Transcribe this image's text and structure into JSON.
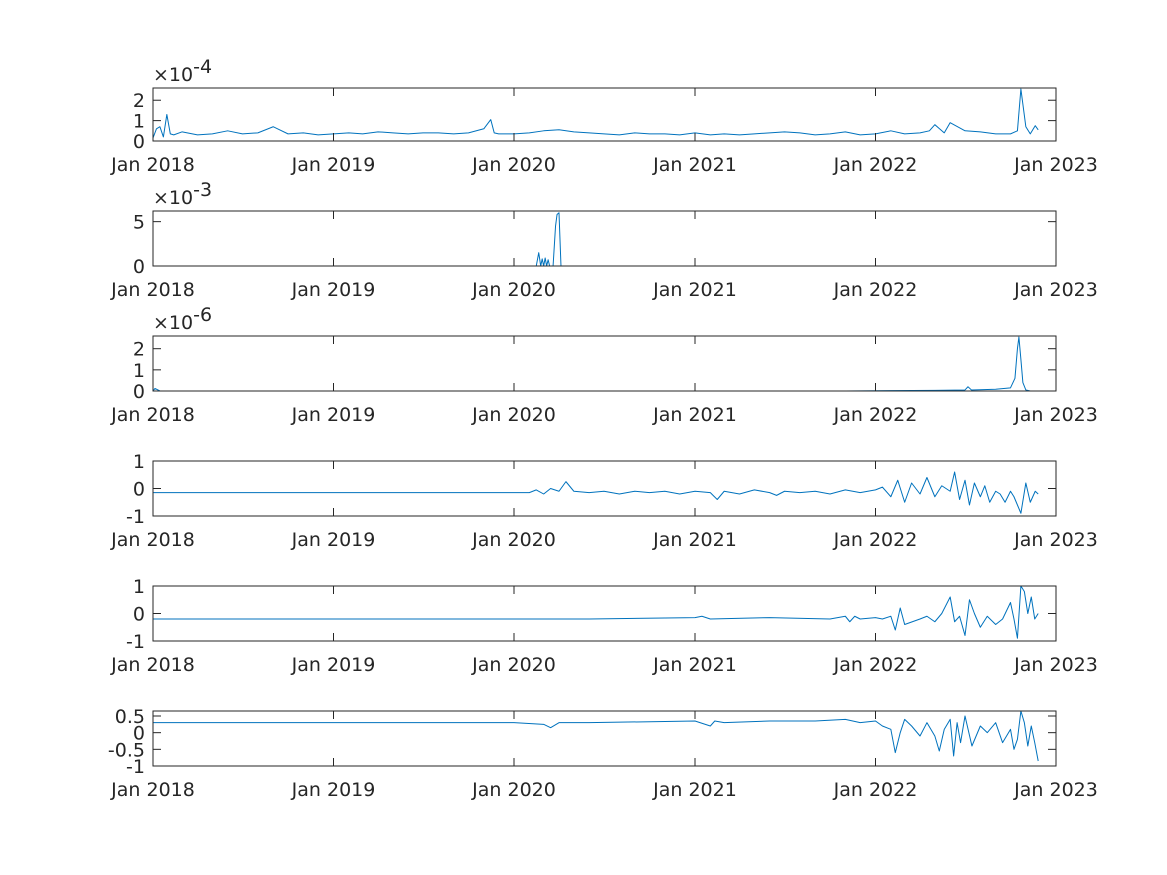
{
  "figure": {
    "background": "#ffffff",
    "line_color": "#0072bd",
    "axis_color": "#262626"
  },
  "chart_data": [
    {
      "type": "line",
      "title": "",
      "xlabel": "",
      "ylabel": "",
      "exponent": "-4",
      "xlim": [
        "2018-01-01",
        "2023-01-01"
      ],
      "x_ticks": [
        "2018-01-01",
        "2019-01-01",
        "2020-01-01",
        "2021-01-01",
        "2022-01-01",
        "2023-01-01"
      ],
      "x_tick_labels": [
        "Jan 2018",
        "Jan 2019",
        "Jan 2020",
        "Jan 2021",
        "Jan 2022",
        "Jan 2023"
      ],
      "ylim": [
        0,
        2.6
      ],
      "y_ticks": [
        0,
        1,
        2
      ],
      "y_tick_labels": [
        "0",
        "1",
        "2"
      ],
      "series": [
        {
          "x": [
            "2018-01-01",
            "2018-01-08",
            "2018-01-15",
            "2018-01-22",
            "2018-01-29",
            "2018-02-05",
            "2018-02-12",
            "2018-03-01",
            "2018-04-01",
            "2018-05-01",
            "2018-06-01",
            "2018-07-01",
            "2018-08-01",
            "2018-09-01",
            "2018-10-01",
            "2018-11-01",
            "2018-12-01",
            "2019-01-01",
            "2019-02-01",
            "2019-03-01",
            "2019-04-01",
            "2019-05-01",
            "2019-06-01",
            "2019-07-01",
            "2019-08-01",
            "2019-09-01",
            "2019-10-01",
            "2019-11-01",
            "2019-11-15",
            "2019-11-22",
            "2019-12-01",
            "2020-01-01",
            "2020-02-01",
            "2020-03-01",
            "2020-04-01",
            "2020-05-01",
            "2020-06-01",
            "2020-07-01",
            "2020-08-01",
            "2020-09-01",
            "2020-10-01",
            "2020-11-01",
            "2020-12-01",
            "2021-01-01",
            "2021-02-01",
            "2021-03-01",
            "2021-04-01",
            "2021-05-01",
            "2021-06-01",
            "2021-07-01",
            "2021-08-01",
            "2021-09-01",
            "2021-10-01",
            "2021-11-01",
            "2021-12-01",
            "2022-01-01",
            "2022-02-01",
            "2022-03-01",
            "2022-04-01",
            "2022-04-20",
            "2022-05-01",
            "2022-05-20",
            "2022-06-01",
            "2022-07-01",
            "2022-08-01",
            "2022-09-01",
            "2022-10-01",
            "2022-10-15",
            "2022-10-22",
            "2022-11-01",
            "2022-11-10",
            "2022-11-20",
            "2022-11-26"
          ],
          "values": [
            0.15,
            0.6,
            0.7,
            0.2,
            1.3,
            0.35,
            0.3,
            0.45,
            0.3,
            0.35,
            0.5,
            0.35,
            0.4,
            0.7,
            0.35,
            0.4,
            0.3,
            0.35,
            0.4,
            0.35,
            0.45,
            0.4,
            0.35,
            0.4,
            0.4,
            0.35,
            0.4,
            0.6,
            1.05,
            0.4,
            0.35,
            0.35,
            0.4,
            0.5,
            0.55,
            0.45,
            0.4,
            0.35,
            0.3,
            0.4,
            0.35,
            0.35,
            0.3,
            0.4,
            0.3,
            0.35,
            0.3,
            0.35,
            0.4,
            0.45,
            0.4,
            0.3,
            0.35,
            0.45,
            0.3,
            0.35,
            0.5,
            0.35,
            0.4,
            0.5,
            0.8,
            0.4,
            0.9,
            0.5,
            0.45,
            0.35,
            0.35,
            0.5,
            2.55,
            0.7,
            0.35,
            0.75,
            0.55
          ]
        }
      ]
    },
    {
      "type": "line",
      "title": "",
      "xlabel": "",
      "ylabel": "",
      "exponent": "-3",
      "xlim": [
        "2018-01-01",
        "2023-01-01"
      ],
      "x_ticks": [
        "2018-01-01",
        "2019-01-01",
        "2020-01-01",
        "2021-01-01",
        "2022-01-01",
        "2023-01-01"
      ],
      "x_tick_labels": [
        "Jan 2018",
        "Jan 2019",
        "Jan 2020",
        "Jan 2021",
        "Jan 2022",
        "Jan 2023"
      ],
      "ylim": [
        0,
        6.2
      ],
      "y_ticks": [
        0,
        5
      ],
      "y_tick_labels": [
        "0",
        "5"
      ],
      "series": [
        {
          "x": [
            "2018-01-01",
            "2020-02-15",
            "2020-02-20",
            "2020-02-24",
            "2020-02-27",
            "2020-03-01",
            "2020-03-04",
            "2020-03-07",
            "2020-03-10",
            "2020-03-13",
            "2020-03-20",
            "2020-03-25",
            "2020-03-28",
            "2020-04-01",
            "2020-04-05",
            "2020-04-08",
            "2020-04-12",
            "2022-11-26"
          ],
          "values": [
            0,
            0,
            1.5,
            0,
            0.8,
            0,
            0.9,
            0,
            0.7,
            0,
            0,
            4.5,
            5.8,
            6.0,
            0,
            0,
            0,
            0
          ]
        }
      ]
    },
    {
      "type": "line",
      "title": "",
      "xlabel": "",
      "ylabel": "",
      "exponent": "-6",
      "xlim": [
        "2018-01-01",
        "2023-01-01"
      ],
      "x_ticks": [
        "2018-01-01",
        "2019-01-01",
        "2020-01-01",
        "2021-01-01",
        "2022-01-01",
        "2023-01-01"
      ],
      "x_tick_labels": [
        "Jan 2018",
        "Jan 2019",
        "Jan 2020",
        "Jan 2021",
        "Jan 2022",
        "Jan 2023"
      ],
      "ylim": [
        0,
        2.6
      ],
      "y_ticks": [
        0,
        1,
        2
      ],
      "y_tick_labels": [
        "0",
        "1",
        "2"
      ],
      "series": [
        {
          "x": [
            "2018-01-01",
            "2018-01-05",
            "2018-01-15",
            "2021-11-01",
            "2022-02-01",
            "2022-05-01",
            "2022-07-01",
            "2022-07-07",
            "2022-07-14",
            "2022-09-01",
            "2022-10-01",
            "2022-10-10",
            "2022-10-15",
            "2022-10-18",
            "2022-10-22",
            "2022-10-26",
            "2022-11-01",
            "2022-11-10",
            "2022-11-26"
          ],
          "values": [
            0,
            0.12,
            0,
            0,
            0.02,
            0.03,
            0.05,
            0.2,
            0.05,
            0.08,
            0.15,
            0.6,
            2.0,
            2.55,
            1.5,
            0.4,
            0.05,
            0,
            0
          ]
        }
      ]
    },
    {
      "type": "line",
      "title": "",
      "xlabel": "",
      "ylabel": "",
      "exponent": "",
      "xlim": [
        "2018-01-01",
        "2023-01-01"
      ],
      "x_ticks": [
        "2018-01-01",
        "2019-01-01",
        "2020-01-01",
        "2021-01-01",
        "2022-01-01",
        "2023-01-01"
      ],
      "x_tick_labels": [
        "Jan 2018",
        "Jan 2019",
        "Jan 2020",
        "Jan 2021",
        "Jan 2022",
        "Jan 2023"
      ],
      "ylim": [
        -1,
        1
      ],
      "y_ticks": [
        -1,
        0,
        1
      ],
      "y_tick_labels": [
        "-1",
        "0",
        "1"
      ],
      "series": [
        {
          "x": [
            "2018-01-01",
            "2020-02-01",
            "2020-02-15",
            "2020-03-01",
            "2020-03-15",
            "2020-04-01",
            "2020-04-15",
            "2020-05-01",
            "2020-06-01",
            "2020-07-01",
            "2020-08-01",
            "2020-09-01",
            "2020-10-01",
            "2020-11-01",
            "2020-12-01",
            "2021-01-01",
            "2021-02-01",
            "2021-02-15",
            "2021-03-01",
            "2021-04-01",
            "2021-05-01",
            "2021-06-01",
            "2021-06-15",
            "2021-07-01",
            "2021-08-01",
            "2021-09-01",
            "2021-10-01",
            "2021-11-01",
            "2021-12-01",
            "2022-01-01",
            "2022-01-15",
            "2022-02-01",
            "2022-02-15",
            "2022-03-01",
            "2022-03-15",
            "2022-04-01",
            "2022-04-15",
            "2022-05-01",
            "2022-05-15",
            "2022-06-01",
            "2022-06-10",
            "2022-06-20",
            "2022-07-01",
            "2022-07-10",
            "2022-07-20",
            "2022-08-01",
            "2022-08-10",
            "2022-08-20",
            "2022-09-01",
            "2022-09-10",
            "2022-09-20",
            "2022-10-01",
            "2022-10-08",
            "2022-10-15",
            "2022-10-22",
            "2022-11-01",
            "2022-11-10",
            "2022-11-20",
            "2022-11-26"
          ],
          "values": [
            -0.15,
            -0.15,
            -0.05,
            -0.2,
            0.0,
            -0.1,
            0.25,
            -0.1,
            -0.15,
            -0.1,
            -0.2,
            -0.1,
            -0.15,
            -0.1,
            -0.2,
            -0.1,
            -0.15,
            -0.4,
            -0.1,
            -0.2,
            -0.05,
            -0.15,
            -0.25,
            -0.1,
            -0.15,
            -0.1,
            -0.2,
            -0.05,
            -0.15,
            -0.05,
            0.05,
            -0.3,
            0.3,
            -0.5,
            0.2,
            -0.2,
            0.4,
            -0.3,
            0.1,
            -0.1,
            0.6,
            -0.4,
            0.3,
            -0.6,
            0.2,
            -0.3,
            0.1,
            -0.5,
            -0.1,
            -0.2,
            -0.5,
            -0.1,
            -0.3,
            -0.6,
            -0.9,
            0.2,
            -0.5,
            -0.1,
            -0.2
          ]
        }
      ]
    },
    {
      "type": "line",
      "title": "",
      "xlabel": "",
      "ylabel": "",
      "exponent": "",
      "xlim": [
        "2018-01-01",
        "2023-01-01"
      ],
      "x_ticks": [
        "2018-01-01",
        "2019-01-01",
        "2020-01-01",
        "2021-01-01",
        "2022-01-01",
        "2023-01-01"
      ],
      "x_tick_labels": [
        "Jan 2018",
        "Jan 2019",
        "Jan 2020",
        "Jan 2021",
        "Jan 2022",
        "Jan 2023"
      ],
      "ylim": [
        -1,
        1
      ],
      "y_ticks": [
        -1,
        0,
        1
      ],
      "y_tick_labels": [
        "-1",
        "0",
        "1"
      ],
      "series": [
        {
          "x": [
            "2018-01-01",
            "2020-01-01",
            "2020-06-01",
            "2021-01-01",
            "2021-01-15",
            "2021-02-01",
            "2021-06-01",
            "2021-10-01",
            "2021-11-01",
            "2021-11-10",
            "2021-11-20",
            "2021-12-01",
            "2022-01-01",
            "2022-01-15",
            "2022-02-01",
            "2022-02-10",
            "2022-02-20",
            "2022-03-01",
            "2022-04-01",
            "2022-04-15",
            "2022-05-01",
            "2022-05-15",
            "2022-06-01",
            "2022-06-10",
            "2022-06-20",
            "2022-07-01",
            "2022-07-10",
            "2022-07-20",
            "2022-08-01",
            "2022-08-15",
            "2022-09-01",
            "2022-09-15",
            "2022-10-01",
            "2022-10-08",
            "2022-10-15",
            "2022-10-22",
            "2022-10-29",
            "2022-11-05",
            "2022-11-12",
            "2022-11-19",
            "2022-11-26"
          ],
          "values": [
            -0.2,
            -0.2,
            -0.2,
            -0.15,
            -0.1,
            -0.2,
            -0.15,
            -0.2,
            -0.1,
            -0.3,
            -0.1,
            -0.2,
            -0.15,
            -0.2,
            -0.1,
            -0.6,
            0.2,
            -0.4,
            -0.2,
            -0.1,
            -0.3,
            0.0,
            0.6,
            -0.3,
            -0.1,
            -0.8,
            0.5,
            0.0,
            -0.5,
            -0.1,
            -0.4,
            -0.2,
            0.4,
            -0.2,
            -0.9,
            1.0,
            0.8,
            0.0,
            0.6,
            -0.2,
            0.0
          ]
        }
      ]
    },
    {
      "type": "line",
      "title": "",
      "xlabel": "",
      "ylabel": "",
      "exponent": "",
      "xlim": [
        "2018-01-01",
        "2023-01-01"
      ],
      "x_ticks": [
        "2018-01-01",
        "2019-01-01",
        "2020-01-01",
        "2021-01-01",
        "2022-01-01",
        "2023-01-01"
      ],
      "x_tick_labels": [
        "Jan 2018",
        "Jan 2019",
        "Jan 2020",
        "Jan 2021",
        "Jan 2022",
        "Jan 2023"
      ],
      "ylim": [
        -1,
        0.65
      ],
      "y_ticks": [
        -1,
        -0.5,
        0,
        0.5
      ],
      "y_tick_labels": [
        "-1",
        "-0.5",
        "0",
        "0.5"
      ],
      "series": [
        {
          "x": [
            "2018-01-01",
            "2020-01-01",
            "2020-03-01",
            "2020-03-15",
            "2020-04-01",
            "2020-06-01",
            "2021-01-01",
            "2021-02-01",
            "2021-02-10",
            "2021-03-01",
            "2021-06-01",
            "2021-09-01",
            "2021-11-01",
            "2021-12-01",
            "2022-01-01",
            "2022-01-15",
            "2022-02-01",
            "2022-02-10",
            "2022-02-20",
            "2022-03-01",
            "2022-03-15",
            "2022-04-01",
            "2022-04-15",
            "2022-05-01",
            "2022-05-10",
            "2022-05-20",
            "2022-06-01",
            "2022-06-08",
            "2022-06-15",
            "2022-06-22",
            "2022-07-01",
            "2022-07-15",
            "2022-08-01",
            "2022-08-15",
            "2022-09-01",
            "2022-09-15",
            "2022-10-01",
            "2022-10-08",
            "2022-10-15",
            "2022-10-22",
            "2022-10-29",
            "2022-11-05",
            "2022-11-12",
            "2022-11-19",
            "2022-11-26"
          ],
          "values": [
            0.3,
            0.3,
            0.25,
            0.15,
            0.3,
            0.3,
            0.35,
            0.2,
            0.35,
            0.3,
            0.35,
            0.35,
            0.4,
            0.3,
            0.35,
            0.2,
            0.1,
            -0.6,
            0.0,
            0.4,
            0.2,
            -0.1,
            0.3,
            -0.1,
            -0.55,
            0.1,
            0.4,
            -0.7,
            0.3,
            -0.3,
            0.5,
            -0.4,
            0.2,
            0.0,
            0.3,
            -0.3,
            0.1,
            -0.5,
            -0.2,
            0.65,
            0.3,
            -0.4,
            0.2,
            -0.3,
            -0.85
          ]
        }
      ]
    }
  ]
}
